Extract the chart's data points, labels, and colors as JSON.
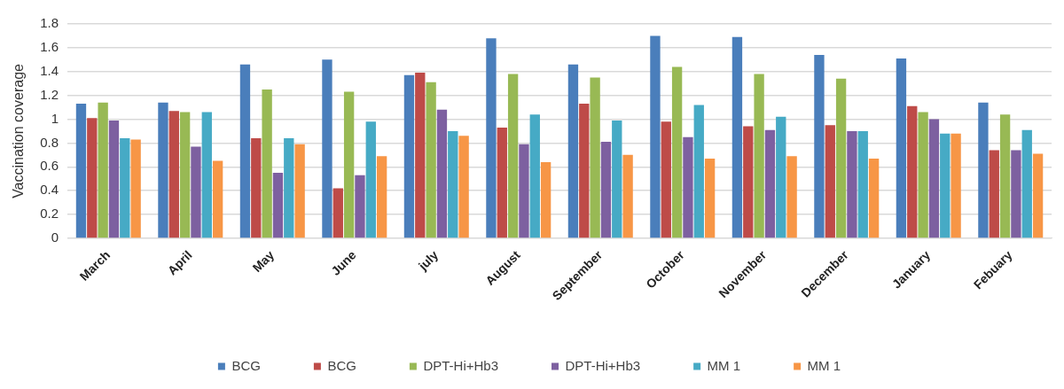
{
  "chart_data": {
    "type": "bar",
    "ylabel": "Vaccination coverage",
    "categories": [
      "March",
      "April",
      "May",
      "June",
      "july",
      "August",
      "September",
      "October",
      "November",
      "December",
      "January",
      "Febuary"
    ],
    "series": [
      {
        "name": "BCG",
        "color": "#4a7ebb",
        "values": [
          1.13,
          1.14,
          1.46,
          1.5,
          1.37,
          1.68,
          1.46,
          1.7,
          1.69,
          1.54,
          1.51,
          1.14
        ]
      },
      {
        "name": "BCG",
        "color": "#be4b48",
        "values": [
          1.01,
          1.07,
          0.84,
          0.42,
          1.39,
          0.93,
          1.13,
          0.98,
          0.94,
          0.95,
          1.11,
          0.74
        ]
      },
      {
        "name": "DPT-Hi+Hb3",
        "color": "#98b954",
        "values": [
          1.14,
          1.06,
          1.25,
          1.23,
          1.31,
          1.38,
          1.35,
          1.44,
          1.38,
          1.34,
          1.06,
          1.04
        ]
      },
      {
        "name": "DPT-Hi+Hb3",
        "color": "#7d60a0",
        "values": [
          0.99,
          0.77,
          0.55,
          0.53,
          1.08,
          0.79,
          0.81,
          0.85,
          0.91,
          0.9,
          1.0,
          0.74
        ]
      },
      {
        "name": "MM 1",
        "color": "#46aac5",
        "values": [
          0.84,
          1.06,
          0.84,
          0.98,
          0.9,
          1.04,
          0.99,
          1.12,
          1.02,
          0.9,
          0.88,
          0.91
        ]
      },
      {
        "name": "MM 1",
        "color": "#f79646",
        "values": [
          0.83,
          0.65,
          0.79,
          0.69,
          0.86,
          0.64,
          0.7,
          0.67,
          0.69,
          0.67,
          0.88,
          0.71
        ]
      }
    ],
    "ylim": [
      0,
      1.8
    ],
    "yticks": [
      0,
      0.2,
      0.4,
      0.6,
      0.8,
      1,
      1.2,
      1.4,
      1.6,
      1.8
    ],
    "grid": "y",
    "legend": "bottom"
  }
}
